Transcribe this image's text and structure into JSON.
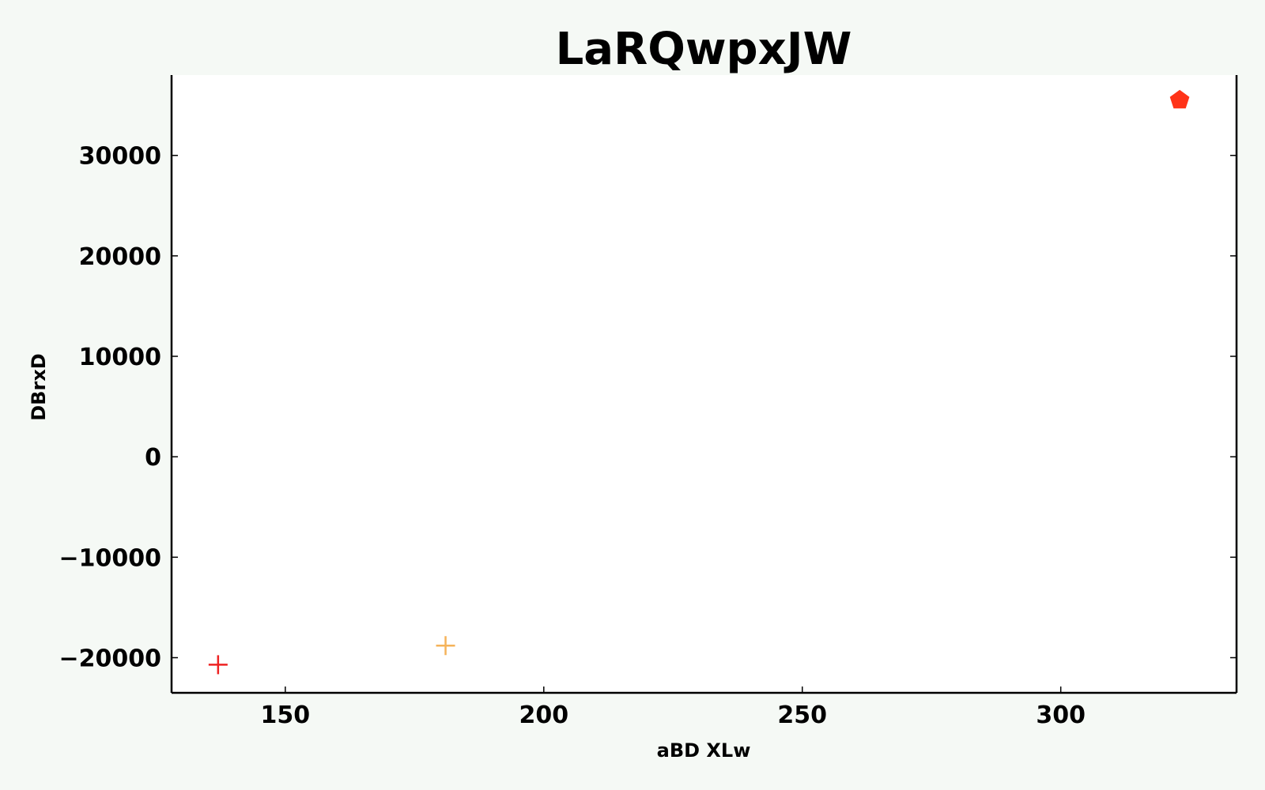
{
  "chart_data": {
    "type": "scatter",
    "title": "LaRQwpxJW",
    "xlabel": "aBD XLw",
    "ylabel": "DBrxD",
    "xlim": [
      128,
      334
    ],
    "ylim": [
      -23500,
      38000
    ],
    "xticks": [
      150,
      200,
      250,
      300
    ],
    "yticks": [
      -20000,
      -10000,
      0,
      10000,
      20000,
      30000
    ],
    "tick_labels": {
      "x": [
        "150",
        "200",
        "250",
        "300"
      ],
      "y": [
        "−20000",
        "−10000",
        "0",
        "10000",
        "20000",
        "30000"
      ]
    },
    "grid": false,
    "points": [
      {
        "x": 137,
        "y": -20700,
        "marker": "plus",
        "color": "#ee2222"
      },
      {
        "x": 181,
        "y": -18800,
        "marker": "plus",
        "color": "#f5b35a"
      },
      {
        "x": 323,
        "y": 35500,
        "marker": "pentagon",
        "color": "#ff3318"
      }
    ]
  }
}
